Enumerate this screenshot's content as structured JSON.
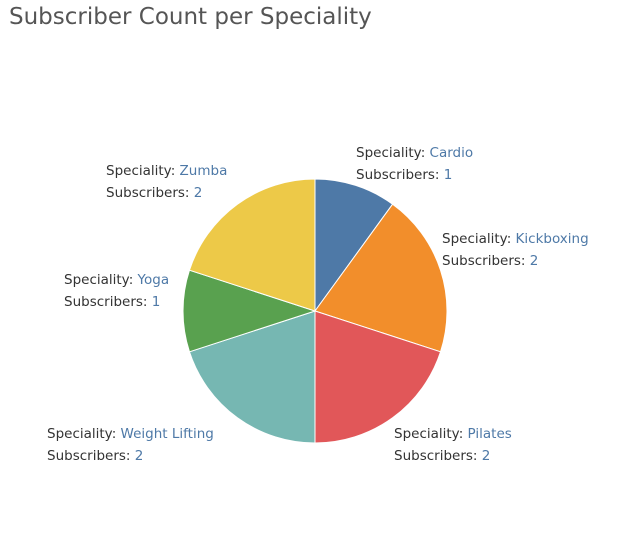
{
  "chart_data": {
    "type": "pie",
    "title": "Subscriber Count per Speciality",
    "label_fields": {
      "category": "Speciality",
      "value": "Subscribers"
    },
    "slices": [
      {
        "category": "Cardio",
        "value": 1,
        "color": "#4e79a7"
      },
      {
        "category": "Kickboxing",
        "value": 2,
        "color": "#f28e2b"
      },
      {
        "category": "Pilates",
        "value": 2,
        "color": "#e15759"
      },
      {
        "category": "Weight Lifting",
        "value": 2,
        "color": "#76b7b2"
      },
      {
        "category": "Yoga",
        "value": 1,
        "color": "#59a14f"
      },
      {
        "category": "Zumba",
        "value": 2,
        "color": "#edc948"
      }
    ]
  }
}
